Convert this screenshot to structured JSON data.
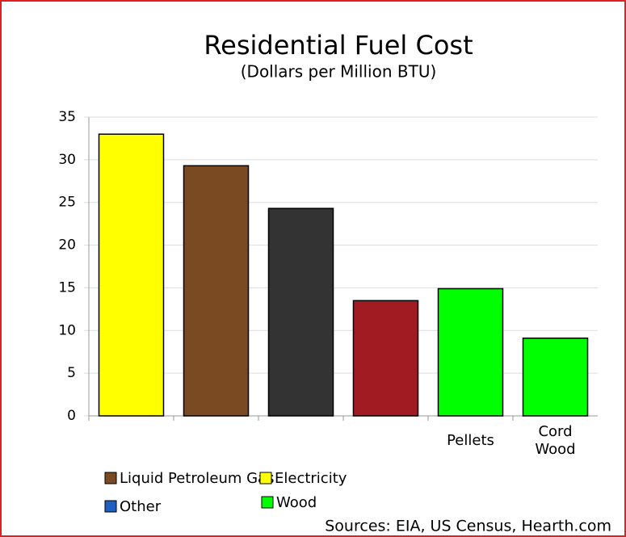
{
  "chart_data": {
    "type": "bar",
    "title": "Residential Fuel Cost",
    "subtitle": "(Dollars per Million BTU)",
    "categories": [
      null,
      null,
      null,
      null,
      "Pellets",
      "Cord Wood"
    ],
    "values": [
      33,
      29.3,
      24.3,
      13.5,
      14.9,
      9.1
    ],
    "colors": [
      "#ffff00",
      "#7a4a22",
      "#333333",
      "#a01c22",
      "#00ff00",
      "#00ff00"
    ],
    "ylim": [
      0,
      35
    ],
    "yticks": [
      0,
      5,
      10,
      15,
      20,
      25,
      30,
      35
    ],
    "grid": true,
    "legend": [
      {
        "name": "Liquid Petroleum Gas",
        "color": "#7a4a22"
      },
      {
        "name": "Electricity",
        "color": "#ffff00"
      },
      {
        "name": "Other",
        "color": "#1f5fbf"
      },
      {
        "name": "Wood",
        "color": "#00ff00"
      }
    ],
    "source": "Sources: EIA, US Census, Hearth.com"
  }
}
